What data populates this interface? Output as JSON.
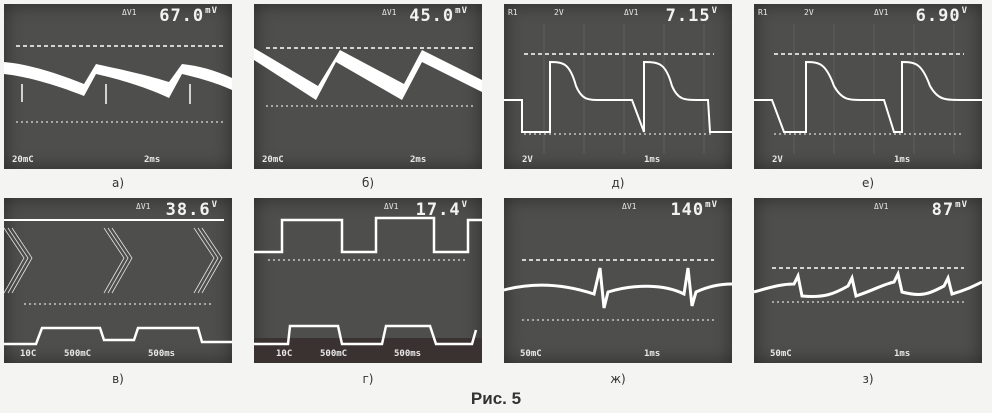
{
  "figure_title": "Рис. 5",
  "panels": [
    {
      "caption": "а)",
      "delta": "ΔV1",
      "value": "67.0",
      "unit": "mV",
      "ch": "",
      "ch2": "",
      "scale_left": "20mC",
      "scale_right": "2ms"
    },
    {
      "caption": "б)",
      "delta": "ΔV1",
      "value": "45.0",
      "unit": "mV",
      "ch": "",
      "ch2": "",
      "scale_left": "20mC",
      "scale_right": "2ms"
    },
    {
      "caption": "д)",
      "delta": "ΔV1",
      "value": "7.15",
      "unit": "V",
      "ch": "R1",
      "ch2": "2V",
      "scale_left": "2V",
      "scale_right": "1ms"
    },
    {
      "caption": "е)",
      "delta": "ΔV1",
      "value": "6.90",
      "unit": "V",
      "ch": "R1",
      "ch2": "2V",
      "scale_left": "2V",
      "scale_right": "1ms"
    },
    {
      "caption": "в)",
      "delta": "ΔV1",
      "value": "38.6",
      "unit": "V",
      "ch": "",
      "ch2": "",
      "scale_left": "10C",
      "scale_mid": "500mC",
      "scale_right": "500ms"
    },
    {
      "caption": "г)",
      "delta": "ΔV1",
      "value": "17.4",
      "unit": "V",
      "ch": "",
      "ch2": "",
      "scale_left": "10C",
      "scale_mid": "500mC",
      "scale_right": "500ms"
    },
    {
      "caption": "ж)",
      "delta": "ΔV1",
      "value": "140",
      "unit": "mV",
      "ch": "",
      "ch2": "",
      "scale_left": "50mC",
      "scale_right": "1ms"
    },
    {
      "caption": "з)",
      "delta": "ΔV1",
      "value": "87",
      "unit": "mV",
      "ch": "",
      "ch2": "",
      "scale_left": "50mC",
      "scale_right": "1ms"
    }
  ]
}
